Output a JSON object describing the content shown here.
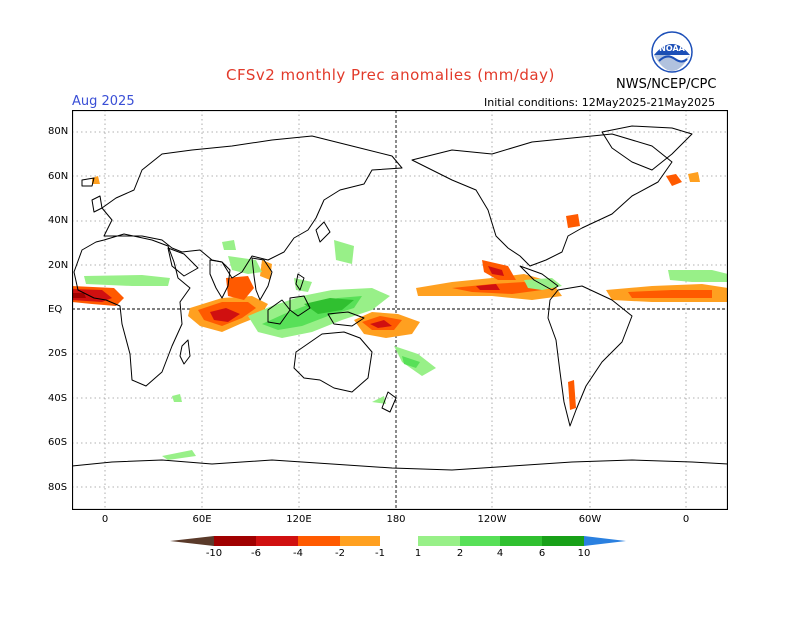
{
  "header": {
    "title": "CFSv2 monthly Prec anomalies (mm/day)",
    "agency": "NWS/NCEP/CPC",
    "logo_text": "NOAA",
    "month": "Aug 2025",
    "initial_conditions": "Initial conditions: 12May2025-21May2025"
  },
  "axes": {
    "y_labels": [
      "80N",
      "60N",
      "40N",
      "20N",
      "EQ",
      "20S",
      "40S",
      "60S",
      "80S"
    ],
    "x_labels": [
      "0",
      "60E",
      "120E",
      "180",
      "120W",
      "60W",
      "0"
    ]
  },
  "colorbar": {
    "labels": [
      "-10",
      "-6",
      "-4",
      "-2",
      "-1",
      "1",
      "2",
      "4",
      "6",
      "10"
    ],
    "colors": {
      "lt_m10": "#5a3a2a",
      "m10_m6": "#a00000",
      "m6_m4": "#d01010",
      "m4_m2": "#ff5a00",
      "m2_m1": "#ffa020",
      "near_zero": "#ffffff",
      "p1_p2": "#98f088",
      "p2_p4": "#58e058",
      "p4_p6": "#30c030",
      "p6_p10": "#18a018",
      "gt_p10": "#2a80e0"
    }
  },
  "colors": {
    "title": "#e23a2a",
    "month": "#3a4fd6",
    "grid": "#999999",
    "logo": "#1c4fb8"
  }
}
